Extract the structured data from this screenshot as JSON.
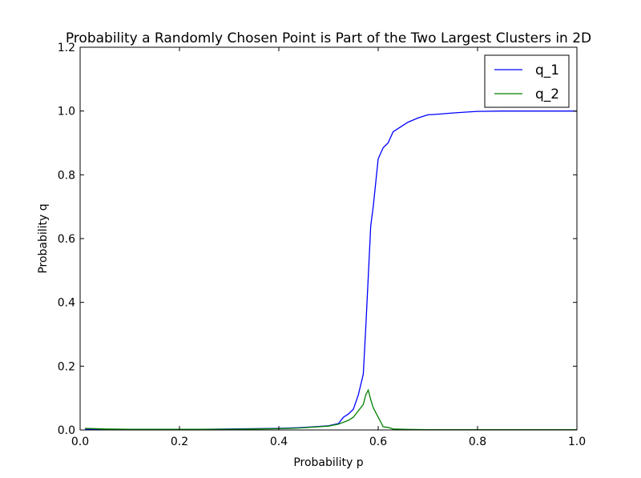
{
  "chart_data": {
    "type": "line",
    "title": "Probability a Randomly Chosen Point is Part of the Two Largest Clusters in 2D",
    "xlabel": "Probability p",
    "ylabel": "Probability q",
    "xlim": [
      0.0,
      1.0
    ],
    "ylim": [
      0.0,
      1.2
    ],
    "xticks": [
      "0.0",
      "0.2",
      "0.4",
      "0.6",
      "0.8",
      "1.0"
    ],
    "yticks": [
      "0.0",
      "0.2",
      "0.4",
      "0.6",
      "0.8",
      "1.0",
      "1.2"
    ],
    "grid": false,
    "legend_position": "top-right",
    "series": [
      {
        "name": "q_1",
        "color": "#0000ff",
        "x": [
          0.01,
          0.05,
          0.1,
          0.15,
          0.2,
          0.25,
          0.3,
          0.35,
          0.4,
          0.44,
          0.47,
          0.5,
          0.52,
          0.53,
          0.54,
          0.55,
          0.56,
          0.57,
          0.575,
          0.58,
          0.585,
          0.59,
          0.6,
          0.61,
          0.62,
          0.63,
          0.64,
          0.66,
          0.68,
          0.7,
          0.72,
          0.75,
          0.78,
          0.8,
          0.85,
          0.9,
          1.0
        ],
        "y": [
          0.003,
          0.002,
          0.002,
          0.002,
          0.002,
          0.002,
          0.003,
          0.004,
          0.005,
          0.007,
          0.01,
          0.013,
          0.02,
          0.04,
          0.05,
          0.065,
          0.11,
          0.175,
          0.32,
          0.48,
          0.64,
          0.7,
          0.85,
          0.885,
          0.9,
          0.935,
          0.945,
          0.965,
          0.978,
          0.988,
          0.99,
          0.994,
          0.997,
          0.999,
          1.0,
          1.0,
          1.0
        ]
      },
      {
        "name": "q_2",
        "color": "#008000",
        "x": [
          0.01,
          0.05,
          0.1,
          0.15,
          0.2,
          0.25,
          0.3,
          0.35,
          0.4,
          0.44,
          0.47,
          0.5,
          0.52,
          0.53,
          0.54,
          0.55,
          0.56,
          0.57,
          0.575,
          0.58,
          0.585,
          0.59,
          0.6,
          0.605,
          0.61,
          0.62,
          0.63,
          0.65,
          0.7,
          0.8,
          0.9,
          1.0
        ],
        "y": [
          0.005,
          0.003,
          0.002,
          0.002,
          0.002,
          0.002,
          0.002,
          0.003,
          0.004,
          0.006,
          0.009,
          0.012,
          0.018,
          0.024,
          0.03,
          0.04,
          0.06,
          0.08,
          0.11,
          0.125,
          0.095,
          0.07,
          0.04,
          0.025,
          0.01,
          0.008,
          0.003,
          0.002,
          0.001,
          0.001,
          0.001,
          0.001
        ]
      }
    ]
  }
}
